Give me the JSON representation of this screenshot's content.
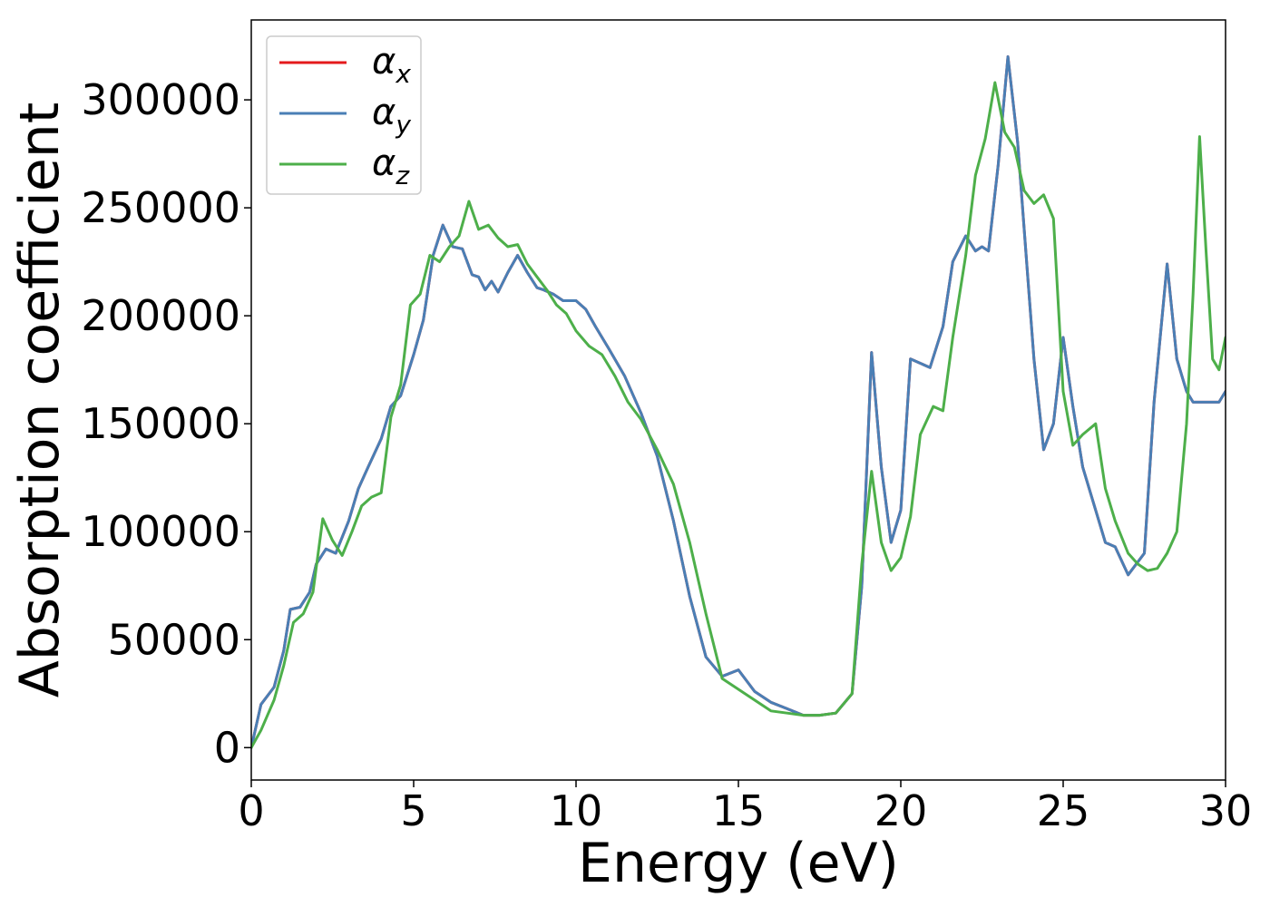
{
  "chart_data": {
    "type": "line",
    "title": "",
    "xlabel": "Energy (eV)",
    "ylabel": "Absorption coefficient",
    "xlim": [
      0,
      30
    ],
    "ylim": [
      -15000,
      337000
    ],
    "xticks": [
      0,
      5,
      10,
      15,
      20,
      25,
      30
    ],
    "xtick_labels": [
      "0",
      "5",
      "10",
      "15",
      "20",
      "25",
      "30"
    ],
    "yticks": [
      0,
      50000,
      100000,
      150000,
      200000,
      250000,
      300000
    ],
    "ytick_labels": [
      "0",
      "50000",
      "100000",
      "150000",
      "200000",
      "250000",
      "300000"
    ],
    "grid": false,
    "legend_position": "top-left",
    "colors": {
      "x": "#e41a1c",
      "y": "#4a7fb5",
      "z": "#4daf4a"
    },
    "series": [
      {
        "name": "αx",
        "legend_main": "α",
        "legend_sub": "x",
        "color": "#e41a1c",
        "x": [
          0,
          0.3,
          0.7,
          1.0,
          1.2,
          1.5,
          1.8,
          2.0,
          2.3,
          2.6,
          3.0,
          3.3,
          3.6,
          4.0,
          4.3,
          4.6,
          5.0,
          5.3,
          5.6,
          5.9,
          6.2,
          6.5,
          6.8,
          7.0,
          7.2,
          7.4,
          7.6,
          7.9,
          8.2,
          8.5,
          8.8,
          9.0,
          9.3,
          9.6,
          10.0,
          10.3,
          10.6,
          11.0,
          11.5,
          12.0,
          12.5,
          13.0,
          13.5,
          14.0,
          14.5,
          15.0,
          15.5,
          16.0,
          16.5,
          17.0,
          17.5,
          18.0,
          18.5,
          18.8,
          19.1,
          19.4,
          19.7,
          20.0,
          20.3,
          20.6,
          20.9,
          21.3,
          21.6,
          22.0,
          22.3,
          22.5,
          22.7,
          23.0,
          23.3,
          23.6,
          23.9,
          24.1,
          24.4,
          24.7,
          25.0,
          25.3,
          25.6,
          26.0,
          26.3,
          26.6,
          27.0,
          27.5,
          27.8,
          28.2,
          28.5,
          28.8,
          29.0,
          29.2,
          29.4,
          29.6,
          29.8,
          30.0
        ],
        "y": [
          0,
          20000,
          28000,
          45000,
          64000,
          65000,
          72000,
          85000,
          92000,
          90000,
          105000,
          120000,
          130000,
          143000,
          158000,
          163000,
          182000,
          198000,
          228000,
          242000,
          232000,
          231000,
          219000,
          218000,
          212000,
          216000,
          211000,
          220000,
          228000,
          220000,
          213000,
          212000,
          210000,
          207000,
          207000,
          203000,
          195000,
          185000,
          172000,
          155000,
          135000,
          105000,
          70000,
          42000,
          33000,
          36000,
          26000,
          21000,
          18000,
          15000,
          15000,
          16000,
          25000,
          75000,
          183000,
          130000,
          95000,
          110000,
          180000,
          178000,
          176000,
          195000,
          225000,
          237000,
          230000,
          232000,
          230000,
          270000,
          320000,
          280000,
          220000,
          180000,
          138000,
          150000,
          190000,
          158000,
          130000,
          110000,
          95000,
          93000,
          80000,
          90000,
          160000,
          224000,
          180000,
          165000,
          160000,
          160000,
          160000,
          160000,
          160000,
          165000
        ]
      },
      {
        "name": "αy",
        "legend_main": "α",
        "legend_sub": "y",
        "color": "#4a7fb5",
        "x": [
          0,
          0.3,
          0.7,
          1.0,
          1.2,
          1.5,
          1.8,
          2.0,
          2.3,
          2.6,
          3.0,
          3.3,
          3.6,
          4.0,
          4.3,
          4.6,
          5.0,
          5.3,
          5.6,
          5.9,
          6.2,
          6.5,
          6.8,
          7.0,
          7.2,
          7.4,
          7.6,
          7.9,
          8.2,
          8.5,
          8.8,
          9.0,
          9.3,
          9.6,
          10.0,
          10.3,
          10.6,
          11.0,
          11.5,
          12.0,
          12.5,
          13.0,
          13.5,
          14.0,
          14.5,
          15.0,
          15.5,
          16.0,
          16.5,
          17.0,
          17.5,
          18.0,
          18.5,
          18.8,
          19.1,
          19.4,
          19.7,
          20.0,
          20.3,
          20.6,
          20.9,
          21.3,
          21.6,
          22.0,
          22.3,
          22.5,
          22.7,
          23.0,
          23.3,
          23.6,
          23.9,
          24.1,
          24.4,
          24.7,
          25.0,
          25.3,
          25.6,
          26.0,
          26.3,
          26.6,
          27.0,
          27.5,
          27.8,
          28.2,
          28.5,
          28.8,
          29.0,
          29.2,
          29.4,
          29.6,
          29.8,
          30.0
        ],
        "y": [
          0,
          20000,
          28000,
          45000,
          64000,
          65000,
          72000,
          85000,
          92000,
          90000,
          105000,
          120000,
          130000,
          143000,
          158000,
          163000,
          182000,
          198000,
          228000,
          242000,
          232000,
          231000,
          219000,
          218000,
          212000,
          216000,
          211000,
          220000,
          228000,
          220000,
          213000,
          212000,
          210000,
          207000,
          207000,
          203000,
          195000,
          185000,
          172000,
          155000,
          135000,
          105000,
          70000,
          42000,
          33000,
          36000,
          26000,
          21000,
          18000,
          15000,
          15000,
          16000,
          25000,
          75000,
          183000,
          130000,
          95000,
          110000,
          180000,
          178000,
          176000,
          195000,
          225000,
          237000,
          230000,
          232000,
          230000,
          270000,
          320000,
          280000,
          220000,
          180000,
          138000,
          150000,
          190000,
          158000,
          130000,
          110000,
          95000,
          93000,
          80000,
          90000,
          160000,
          224000,
          180000,
          165000,
          160000,
          160000,
          160000,
          160000,
          160000,
          165000
        ]
      },
      {
        "name": "αz",
        "legend_main": "α",
        "legend_sub": "z",
        "color": "#4daf4a",
        "x": [
          0,
          0.3,
          0.7,
          1.0,
          1.3,
          1.6,
          1.9,
          2.2,
          2.5,
          2.8,
          3.1,
          3.4,
          3.7,
          4.0,
          4.3,
          4.6,
          4.9,
          5.2,
          5.5,
          5.8,
          6.1,
          6.4,
          6.7,
          7.0,
          7.3,
          7.6,
          7.9,
          8.2,
          8.5,
          8.8,
          9.1,
          9.4,
          9.7,
          10.0,
          10.4,
          10.8,
          11.2,
          11.6,
          12.0,
          12.5,
          13.0,
          13.5,
          14.0,
          14.5,
          15.0,
          15.5,
          16.0,
          16.5,
          17.0,
          17.5,
          18.0,
          18.5,
          18.8,
          19.1,
          19.4,
          19.7,
          20.0,
          20.3,
          20.6,
          21.0,
          21.3,
          21.6,
          22.0,
          22.3,
          22.6,
          22.9,
          23.2,
          23.5,
          23.8,
          24.1,
          24.4,
          24.7,
          25.0,
          25.3,
          25.6,
          26.0,
          26.3,
          26.6,
          27.0,
          27.3,
          27.6,
          27.9,
          28.2,
          28.5,
          28.8,
          29.0,
          29.2,
          29.4,
          29.6,
          29.8,
          30.0
        ],
        "y": [
          0,
          8000,
          22000,
          38000,
          58000,
          62000,
          72000,
          106000,
          96000,
          89000,
          100000,
          112000,
          116000,
          118000,
          153000,
          168000,
          205000,
          210000,
          228000,
          225000,
          232000,
          237000,
          253000,
          240000,
          242000,
          236000,
          232000,
          233000,
          224000,
          218000,
          212000,
          205000,
          201000,
          193000,
          186000,
          182000,
          172000,
          160000,
          152000,
          138000,
          122000,
          95000,
          62000,
          32000,
          27000,
          22000,
          17000,
          16000,
          15000,
          15000,
          16000,
          25000,
          85000,
          128000,
          95000,
          82000,
          88000,
          107000,
          145000,
          158000,
          156000,
          190000,
          228000,
          265000,
          282000,
          308000,
          285000,
          278000,
          258000,
          252000,
          256000,
          245000,
          165000,
          140000,
          145000,
          150000,
          120000,
          105000,
          90000,
          85000,
          82000,
          83000,
          90000,
          100000,
          150000,
          210000,
          283000,
          230000,
          180000,
          175000,
          190000
        ]
      }
    ]
  }
}
